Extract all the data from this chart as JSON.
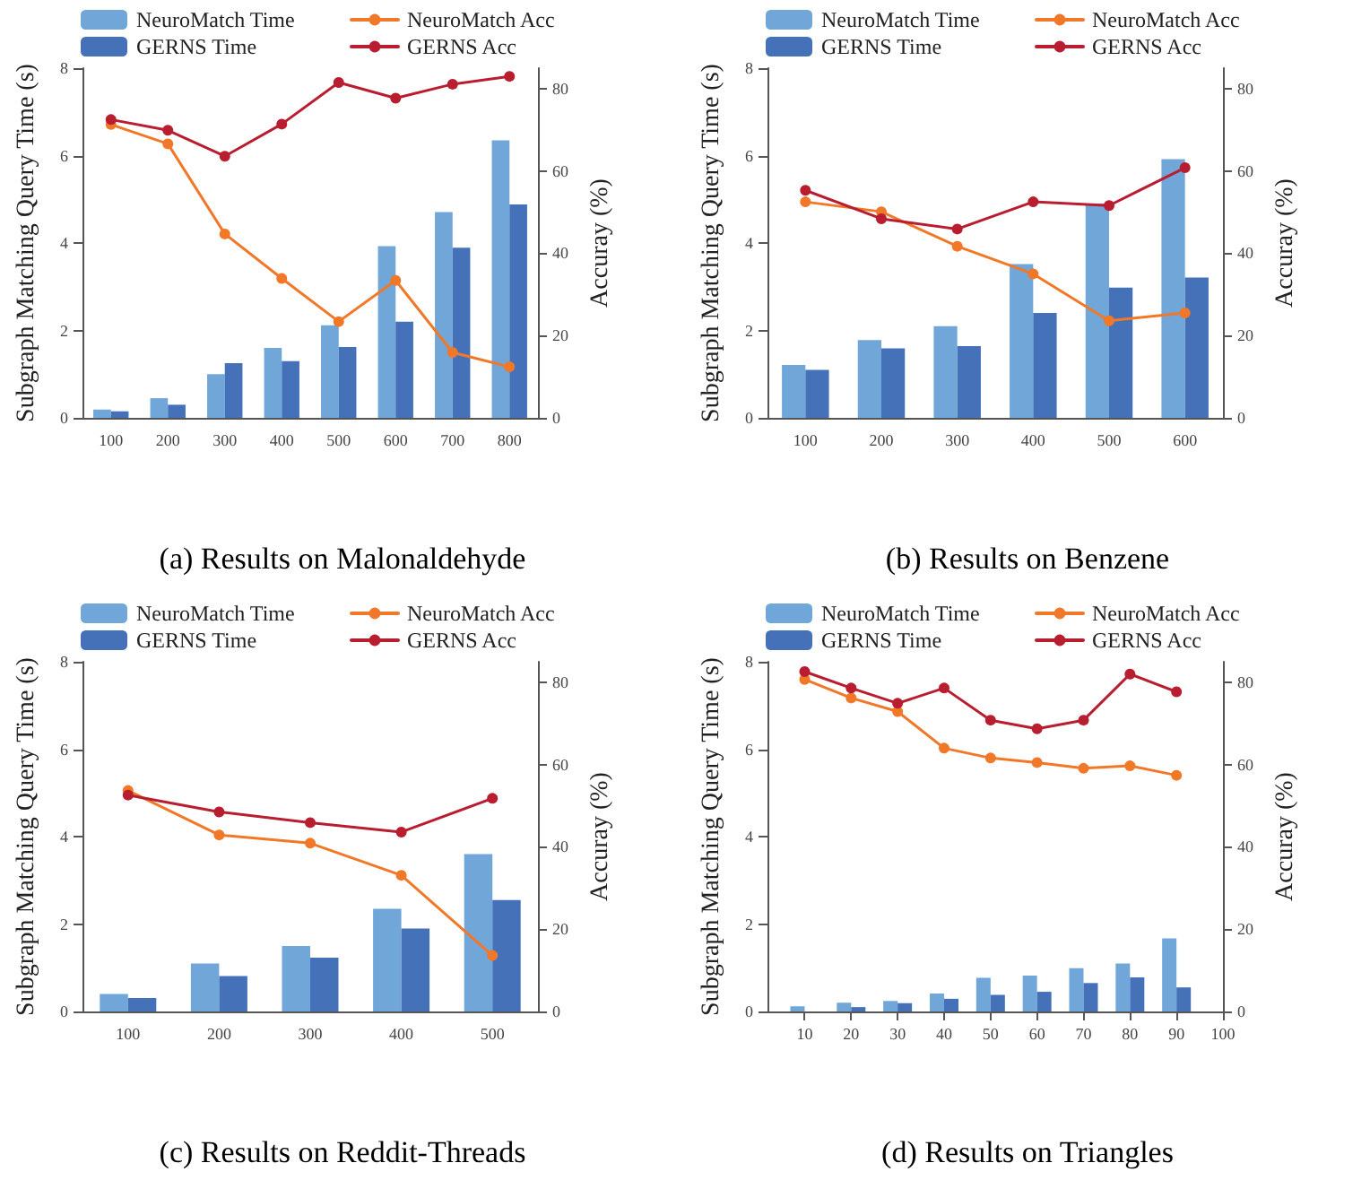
{
  "chart_data": [
    {
      "type": "bar",
      "title": "(a) Results on Malonaldehyde",
      "ylabel": "Subgraph Matching Query Time (s)",
      "y2label": "Accuray (%)",
      "categories": [
        "100",
        "200",
        "300",
        "400",
        "500",
        "600",
        "700",
        "800"
      ],
      "ylim": [
        0,
        8
      ],
      "yticks": [
        0,
        2,
        4,
        6,
        8
      ],
      "y2lim": [
        0,
        85
      ],
      "y2ticks": [
        0,
        20,
        40,
        60,
        80
      ],
      "legend": "top",
      "grid": false,
      "marker": "circle",
      "series": [
        {
          "name": "NeuroMatch Time",
          "color": "#70a6d8",
          "values": [
            0.19,
            0.45,
            1.0,
            1.6,
            2.12,
            3.93,
            4.71,
            6.35
          ]
        },
        {
          "name": "GERNS Time",
          "color": "#4471b8",
          "values": [
            0.15,
            0.3,
            1.25,
            1.3,
            1.62,
            2.2,
            3.89,
            4.88
          ]
        },
        {
          "name": "NeuroMatch Acc",
          "type": "line",
          "axis": "y2",
          "color": "#f07828",
          "values": [
            71.3,
            66.6,
            44.7,
            33.9,
            23.4,
            33.4,
            15.9,
            12.4
          ]
        },
        {
          "name": "GERNS Acc",
          "type": "line",
          "axis": "y2",
          "color": "#b81e30",
          "values": [
            72.5,
            69.9,
            63.6,
            71.4,
            81.5,
            77.7,
            81.1,
            83.0
          ]
        }
      ]
    },
    {
      "type": "bar",
      "title": "(b) Results on Benzene",
      "ylabel": "Subgraph Matching Query Time (s)",
      "y2label": "Accuray (%)",
      "categories": [
        "100",
        "200",
        "300",
        "400",
        "500",
        "600"
      ],
      "ylim": [
        0,
        8
      ],
      "yticks": [
        0,
        2,
        4,
        6,
        8
      ],
      "y2lim": [
        0,
        85
      ],
      "y2ticks": [
        0,
        20,
        40,
        60,
        80
      ],
      "legend": "top",
      "grid": false,
      "marker": "circle",
      "series": [
        {
          "name": "NeuroMatch Time",
          "color": "#70a6d8",
          "values": [
            1.21,
            1.78,
            2.1,
            3.52,
            4.9,
            5.92
          ]
        },
        {
          "name": "GERNS Time",
          "color": "#4471b8",
          "values": [
            1.1,
            1.59,
            1.64,
            2.4,
            2.98,
            3.21
          ]
        },
        {
          "name": "NeuroMatch Acc",
          "type": "line",
          "axis": "y2",
          "color": "#f07828",
          "values": [
            52.5,
            50.1,
            41.7,
            35.0,
            23.6,
            25.5
          ]
        },
        {
          "name": "GERNS Acc",
          "type": "line",
          "axis": "y2",
          "color": "#b81e30",
          "values": [
            55.3,
            48.4,
            45.9,
            52.5,
            51.6,
            60.8
          ]
        }
      ]
    },
    {
      "type": "bar",
      "title": "(c) Results on Reddit-Threads",
      "ylabel": "Subgraph Matching Query Time (s)",
      "y2label": "Accuray (%)",
      "categories": [
        "100",
        "200",
        "300",
        "400",
        "500"
      ],
      "ylim": [
        0,
        8
      ],
      "yticks": [
        0,
        2,
        4,
        6,
        8
      ],
      "y2lim": [
        0,
        85
      ],
      "y2ticks": [
        0,
        20,
        40,
        60,
        80
      ],
      "legend": "top",
      "grid": false,
      "marker": "circle",
      "series": [
        {
          "name": "NeuroMatch Time",
          "color": "#70a6d8",
          "values": [
            0.4,
            1.1,
            1.5,
            2.35,
            3.6
          ]
        },
        {
          "name": "GERNS Time",
          "color": "#4471b8",
          "values": [
            0.31,
            0.81,
            1.23,
            1.9,
            2.55
          ]
        },
        {
          "name": "NeuroMatch Acc",
          "type": "line",
          "axis": "y2",
          "color": "#f07828",
          "values": [
            53.7,
            42.9,
            40.9,
            33.1,
            13.6
          ]
        },
        {
          "name": "GERNS Acc",
          "type": "line",
          "axis": "y2",
          "color": "#b81e30",
          "values": [
            52.6,
            48.5,
            45.9,
            43.6,
            51.8
          ]
        }
      ]
    },
    {
      "type": "bar",
      "title": "(d) Results on Triangles",
      "ylabel": "Subgraph Matching Query Time (s)",
      "y2label": "Accuray (%)",
      "x": [
        10,
        20,
        30,
        40,
        50,
        60,
        70,
        80,
        90
      ],
      "xlim": [
        2,
        100
      ],
      "xticks": [
        10,
        20,
        30,
        40,
        50,
        60,
        70,
        80,
        90,
        100
      ],
      "ylim": [
        0,
        8
      ],
      "yticks": [
        0,
        2,
        4,
        6,
        8
      ],
      "y2lim": [
        0,
        85
      ],
      "y2ticks": [
        0,
        20,
        40,
        60,
        80
      ],
      "legend": "top",
      "grid": false,
      "marker": "circle",
      "series": [
        {
          "name": "NeuroMatch Time",
          "color": "#70a6d8",
          "values": [
            0.12,
            0.2,
            0.24,
            0.41,
            0.77,
            0.82,
            0.99,
            1.1,
            1.67
          ]
        },
        {
          "name": "GERNS Time",
          "color": "#4471b8",
          "values": [
            null,
            0.1,
            0.19,
            0.29,
            0.38,
            0.45,
            0.65,
            0.78,
            0.55
          ]
        },
        {
          "name": "NeuroMatch Acc",
          "type": "line",
          "axis": "y2",
          "color": "#f07828",
          "values": [
            80.7,
            76.2,
            72.9,
            64.0,
            61.6,
            60.5,
            59.1,
            59.7,
            57.4
          ]
        },
        {
          "name": "GERNS Acc",
          "type": "line",
          "axis": "y2",
          "color": "#b81e30",
          "values": [
            82.6,
            78.6,
            74.9,
            78.6,
            70.8,
            68.7,
            70.8,
            82.0,
            77.7
          ]
        }
      ]
    }
  ]
}
